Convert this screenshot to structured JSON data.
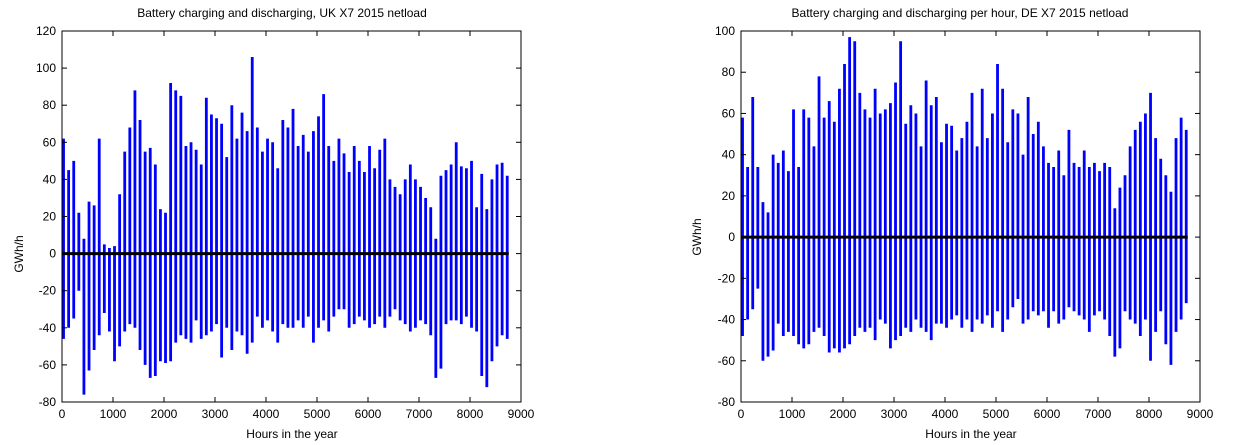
{
  "chart_data": [
    {
      "type": "bar",
      "title": "Battery charging and discharging, UK X7 2015 netload",
      "xlabel": "Hours in the year",
      "ylabel": "GWh/h",
      "xlim": [
        0,
        9000
      ],
      "ylim": [
        -80,
        120
      ],
      "xticks": [
        0,
        1000,
        2000,
        3000,
        4000,
        5000,
        6000,
        7000,
        8000,
        9000
      ],
      "yticks": [
        -80,
        -60,
        -40,
        -20,
        0,
        20,
        40,
        60,
        80,
        100,
        120
      ],
      "series_color": "#0000ff",
      "zero_line_color": "#000000",
      "grid": false,
      "series": [
        {
          "x": [
            0,
            100,
            200,
            300,
            400,
            500,
            600,
            700,
            800,
            900,
            1000,
            1100,
            1200,
            1300,
            1400,
            1500,
            1600,
            1700,
            1800,
            1900,
            2000,
            2100,
            2200,
            2300,
            2400,
            2500,
            2600,
            2700,
            2800,
            2900,
            3000,
            3100,
            3200,
            3300,
            3400,
            3500,
            3600,
            3700,
            3800,
            3900,
            4000,
            4100,
            4200,
            4300,
            4400,
            4500,
            4600,
            4700,
            4800,
            4900,
            5000,
            5100,
            5200,
            5300,
            5400,
            5500,
            5600,
            5700,
            5800,
            5900,
            6000,
            6100,
            6200,
            6300,
            6400,
            6500,
            6600,
            6700,
            6800,
            6900,
            7000,
            7100,
            7200,
            7300,
            7400,
            7500,
            7600,
            7700,
            7800,
            7900,
            8000,
            8100,
            8200,
            8300,
            8400,
            8500,
            8600,
            8700
          ],
          "max": [
            62,
            45,
            50,
            22,
            8,
            28,
            26,
            62,
            5,
            3,
            4,
            32,
            55,
            68,
            88,
            72,
            55,
            57,
            48,
            24,
            22,
            92,
            88,
            85,
            58,
            60,
            56,
            48,
            84,
            75,
            73,
            70,
            52,
            80,
            62,
            76,
            66,
            106,
            68,
            55,
            62,
            60,
            46,
            72,
            68,
            78,
            58,
            64,
            55,
            66,
            74,
            86,
            58,
            50,
            62,
            54,
            44,
            58,
            50,
            44,
            58,
            46,
            56,
            62,
            40,
            36,
            32,
            40,
            48,
            40,
            36,
            30,
            25,
            8,
            42,
            45,
            48,
            60,
            47,
            46,
            50,
            25,
            43,
            24,
            40,
            48,
            49,
            42
          ],
          "min": [
            -46,
            -40,
            -35,
            -20,
            -76,
            -63,
            -52,
            -44,
            -32,
            -42,
            -58,
            -50,
            -42,
            -38,
            -40,
            -52,
            -60,
            -67,
            -66,
            -58,
            -59,
            -58,
            -48,
            -44,
            -46,
            -48,
            -36,
            -46,
            -44,
            -42,
            -38,
            -56,
            -40,
            -52,
            -42,
            -44,
            -54,
            -48,
            -34,
            -40,
            -36,
            -42,
            -48,
            -38,
            -40,
            -40,
            -36,
            -40,
            -34,
            -48,
            -40,
            -36,
            -42,
            -34,
            -30,
            -30,
            -40,
            -38,
            -34,
            -36,
            -40,
            -38,
            -34,
            -40,
            -34,
            -30,
            -36,
            -38,
            -42,
            -40,
            -36,
            -38,
            -44,
            -67,
            -62,
            -38,
            -36,
            -36,
            -38,
            -34,
            -40,
            -42,
            -66,
            -72,
            -58,
            -50,
            -44,
            -46
          ]
        }
      ]
    },
    {
      "type": "bar",
      "title": "Battery charging and discharging per hour, DE X7 2015 netload",
      "xlabel": "Hours in the year",
      "ylabel": "GWh/h",
      "xlim": [
        0,
        9000
      ],
      "ylim": [
        -80,
        100
      ],
      "xticks": [
        0,
        1000,
        2000,
        3000,
        4000,
        5000,
        6000,
        7000,
        8000,
        9000
      ],
      "yticks": [
        -80,
        -60,
        -40,
        -20,
        0,
        20,
        40,
        60,
        80,
        100
      ],
      "series_color": "#0000ff",
      "zero_line_color": "#000000",
      "grid": false,
      "series": [
        {
          "x": [
            0,
            100,
            200,
            300,
            400,
            500,
            600,
            700,
            800,
            900,
            1000,
            1100,
            1200,
            1300,
            1400,
            1500,
            1600,
            1700,
            1800,
            1900,
            2000,
            2100,
            2200,
            2300,
            2400,
            2500,
            2600,
            2700,
            2800,
            2900,
            3000,
            3100,
            3200,
            3300,
            3400,
            3500,
            3600,
            3700,
            3800,
            3900,
            4000,
            4100,
            4200,
            4300,
            4400,
            4500,
            4600,
            4700,
            4800,
            4900,
            5000,
            5100,
            5200,
            5300,
            5400,
            5500,
            5600,
            5700,
            5800,
            5900,
            6000,
            6100,
            6200,
            6300,
            6400,
            6500,
            6600,
            6700,
            6800,
            6900,
            7000,
            7100,
            7200,
            7300,
            7400,
            7500,
            7600,
            7700,
            7800,
            7900,
            8000,
            8100,
            8200,
            8300,
            8400,
            8500,
            8600,
            8700
          ],
          "max": [
            58,
            34,
            68,
            34,
            17,
            12,
            40,
            36,
            42,
            32,
            62,
            34,
            62,
            58,
            44,
            78,
            58,
            66,
            56,
            72,
            84,
            97,
            95,
            70,
            62,
            58,
            72,
            60,
            62,
            65,
            75,
            95,
            55,
            64,
            60,
            44,
            76,
            64,
            68,
            46,
            55,
            54,
            42,
            48,
            56,
            70,
            44,
            72,
            48,
            60,
            84,
            72,
            46,
            62,
            60,
            40,
            68,
            50,
            56,
            44,
            36,
            34,
            42,
            30,
            52,
            36,
            34,
            42,
            34,
            36,
            32,
            36,
            34,
            14,
            24,
            30,
            44,
            52,
            56,
            60,
            70,
            48,
            38,
            30,
            22,
            48,
            58,
            52
          ],
          "min": [
            -48,
            -40,
            -35,
            -25,
            -60,
            -58,
            -55,
            -42,
            -48,
            -46,
            -48,
            -52,
            -54,
            -52,
            -46,
            -44,
            -48,
            -56,
            -54,
            -56,
            -54,
            -52,
            -48,
            -44,
            -46,
            -44,
            -50,
            -40,
            -42,
            -54,
            -50,
            -48,
            -44,
            -46,
            -40,
            -44,
            -46,
            -50,
            -42,
            -42,
            -44,
            -40,
            -38,
            -44,
            -40,
            -46,
            -40,
            -42,
            -38,
            -44,
            -36,
            -46,
            -40,
            -34,
            -30,
            -42,
            -40,
            -36,
            -38,
            -36,
            -44,
            -36,
            -42,
            -40,
            -34,
            -36,
            -38,
            -40,
            -46,
            -38,
            -36,
            -40,
            -48,
            -58,
            -54,
            -36,
            -40,
            -42,
            -48,
            -40,
            -60,
            -46,
            -36,
            -52,
            -62,
            -46,
            -40,
            -32
          ]
        }
      ]
    }
  ]
}
